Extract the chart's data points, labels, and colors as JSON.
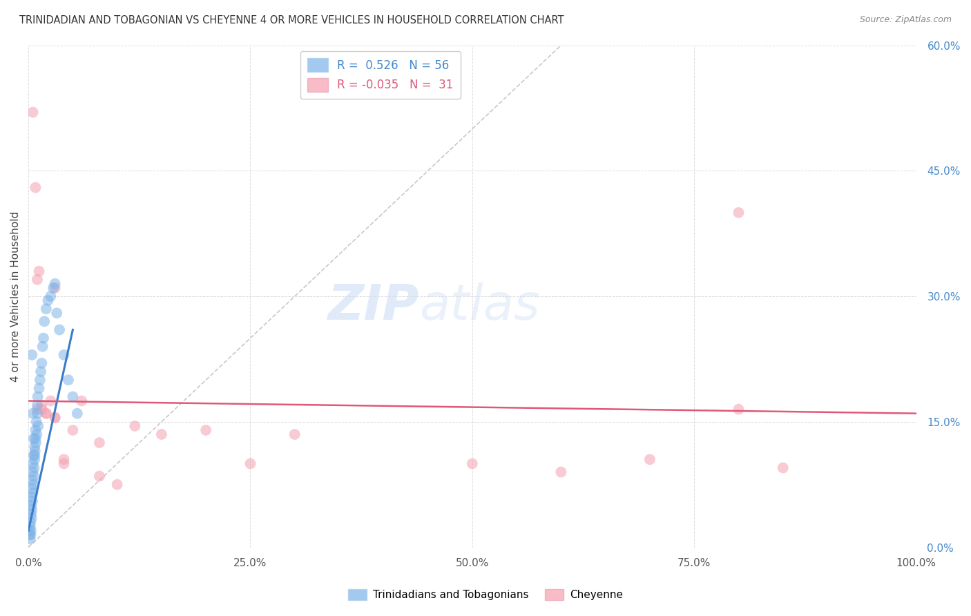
{
  "title": "TRINIDADIAN AND TOBAGONIAN VS CHEYENNE 4 OR MORE VEHICLES IN HOUSEHOLD CORRELATION CHART",
  "source": "Source: ZipAtlas.com",
  "ylabel": "4 or more Vehicles in Household",
  "xlim": [
    0,
    100
  ],
  "ylim": [
    0,
    60
  ],
  "xticks": [
    0,
    25,
    50,
    75,
    100
  ],
  "yticks": [
    0,
    15,
    30,
    45,
    60
  ],
  "xtick_labels": [
    "0.0%",
    "25.0%",
    "50.0%",
    "75.0%",
    "100.0%"
  ],
  "ytick_labels": [
    "0.0%",
    "15.0%",
    "30.0%",
    "45.0%",
    "60.0%"
  ],
  "blue_R": 0.526,
  "blue_N": 56,
  "pink_R": -0.035,
  "pink_N": 31,
  "blue_color": "#7EB3E8",
  "pink_color": "#F4A0B0",
  "blue_edge": "#5A9AD4",
  "pink_edge": "#E87090",
  "blue_line_color": "#3A7CC8",
  "pink_line_color": "#E05878",
  "blue_label": "Trinidadians and Tobagonians",
  "pink_label": "Cheyenne",
  "blue_scatter_x": [
    0.1,
    0.15,
    0.2,
    0.2,
    0.25,
    0.25,
    0.3,
    0.3,
    0.3,
    0.35,
    0.35,
    0.4,
    0.4,
    0.45,
    0.45,
    0.5,
    0.5,
    0.5,
    0.55,
    0.6,
    0.6,
    0.65,
    0.7,
    0.7,
    0.75,
    0.8,
    0.8,
    0.85,
    0.9,
    0.95,
    1.0,
    1.0,
    1.05,
    1.1,
    1.2,
    1.3,
    1.4,
    1.5,
    1.6,
    1.7,
    1.8,
    2.0,
    2.2,
    2.5,
    2.8,
    3.0,
    3.2,
    3.5,
    4.0,
    4.5,
    5.0,
    5.5,
    0.4,
    0.5,
    0.6,
    0.7
  ],
  "blue_scatter_y": [
    2.0,
    1.5,
    1.0,
    2.5,
    1.5,
    3.0,
    2.0,
    4.0,
    5.0,
    3.5,
    6.0,
    4.5,
    7.0,
    5.5,
    8.0,
    6.5,
    9.0,
    10.0,
    7.5,
    8.5,
    11.0,
    9.5,
    10.5,
    12.0,
    11.5,
    13.0,
    14.0,
    12.5,
    15.0,
    13.5,
    16.0,
    17.0,
    18.0,
    14.5,
    19.0,
    20.0,
    21.0,
    22.0,
    24.0,
    25.0,
    27.0,
    28.5,
    29.5,
    30.0,
    31.0,
    31.5,
    28.0,
    26.0,
    23.0,
    20.0,
    18.0,
    16.0,
    23.0,
    16.0,
    13.0,
    11.0
  ],
  "pink_scatter_x": [
    0.5,
    0.8,
    1.0,
    1.2,
    1.5,
    2.0,
    2.5,
    3.0,
    3.0,
    4.0,
    5.0,
    6.0,
    8.0,
    10.0,
    12.0,
    15.0,
    20.0,
    25.0,
    30.0,
    50.0,
    60.0,
    70.0,
    80.0,
    85.0,
    1.0,
    1.5,
    2.0,
    3.0,
    4.0,
    8.0,
    80.0
  ],
  "pink_scatter_y": [
    52.0,
    43.0,
    32.0,
    33.0,
    17.0,
    16.0,
    17.5,
    31.0,
    15.5,
    10.0,
    14.0,
    17.5,
    8.5,
    7.5,
    14.5,
    13.5,
    14.0,
    10.0,
    13.5,
    10.0,
    9.0,
    10.5,
    40.0,
    9.5,
    16.5,
    16.5,
    16.0,
    15.5,
    10.5,
    12.5,
    16.5
  ],
  "blue_line_x0": 0,
  "blue_line_x1": 5,
  "blue_line_y0": 2,
  "blue_line_y1": 26,
  "pink_line_x0": 0,
  "pink_line_x1": 100,
  "pink_line_y0": 17.5,
  "pink_line_y1": 16.0,
  "diag_x0": 0,
  "diag_y0": 0,
  "diag_x1": 60,
  "diag_y1": 60,
  "ytick_color": "#4488CC",
  "xtick_color": "#555555",
  "grid_color": "#dddddd",
  "watermark_zip": "ZIP",
  "watermark_atlas": "atlas",
  "watermark_color": "#ddeeff"
}
